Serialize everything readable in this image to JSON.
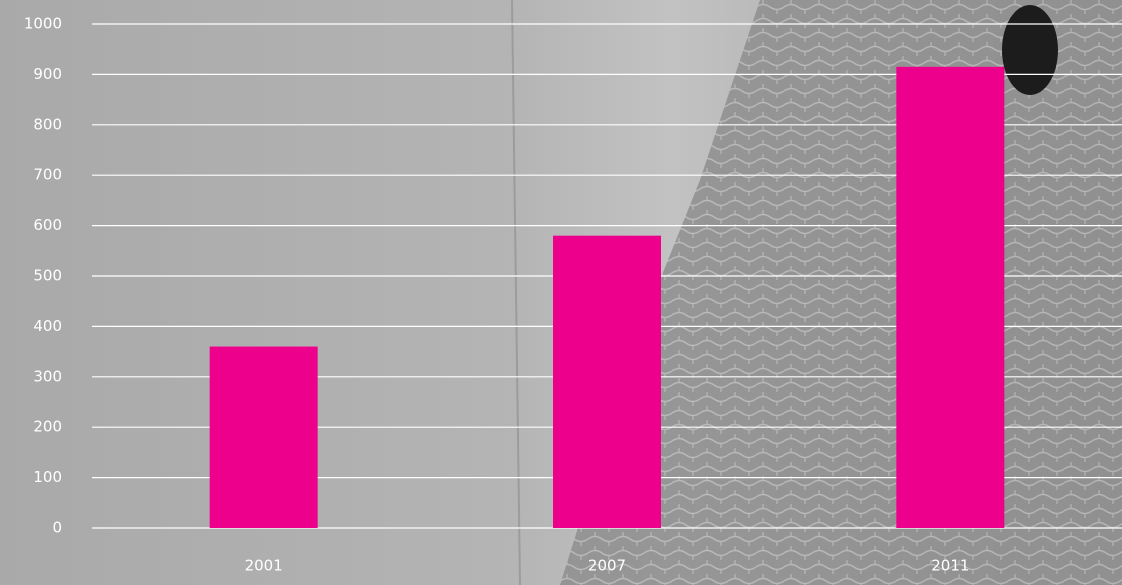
{
  "chart_data": {
    "type": "bar",
    "categories": [
      "2001",
      "2007",
      "2011"
    ],
    "values": [
      360,
      580,
      915
    ],
    "color": "#ec008c",
    "ylim": [
      0,
      1000
    ],
    "yticks": [
      0,
      100,
      200,
      300,
      400,
      500,
      600,
      700,
      800,
      900,
      1000
    ],
    "grid": true
  }
}
